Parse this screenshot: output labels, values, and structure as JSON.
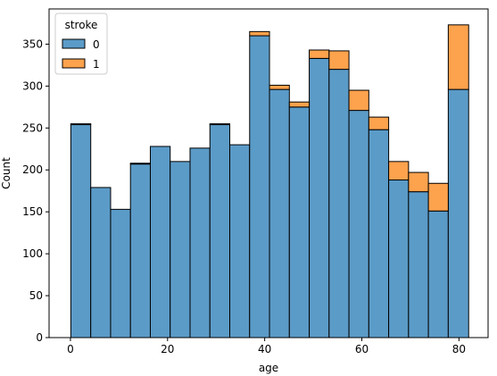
{
  "chart_data": {
    "type": "bar",
    "stacked": true,
    "xlabel": "age",
    "ylabel": "Count",
    "xlim": [
      -4.4,
      86.0
    ],
    "ylim": [
      0,
      392
    ],
    "xticks": [
      0,
      20,
      40,
      60,
      80
    ],
    "yticks": [
      0,
      50,
      100,
      150,
      200,
      250,
      300,
      350
    ],
    "bin_edges": [
      0.08,
      4.18,
      8.27,
      12.36,
      16.45,
      20.54,
      24.63,
      28.72,
      32.81,
      36.9,
      40.99,
      45.08,
      49.17,
      53.26,
      57.35,
      61.44,
      65.53,
      69.62,
      73.71,
      77.8,
      82.0
    ],
    "legend": {
      "title": "stroke",
      "placement": "upper-left"
    },
    "series": [
      {
        "name": "0",
        "color": "#5b9bc8",
        "values": [
          254,
          179,
          153,
          207,
          228,
          210,
          226,
          254,
          230,
          360,
          296,
          275,
          333,
          320,
          271,
          248,
          188,
          174,
          151,
          296
        ]
      },
      {
        "name": "1",
        "color": "#fda24d",
        "values": [
          1,
          0,
          0,
          1,
          0,
          0,
          0,
          1,
          0,
          5,
          5,
          6,
          10,
          22,
          24,
          15,
          22,
          23,
          33,
          77
        ]
      }
    ]
  }
}
